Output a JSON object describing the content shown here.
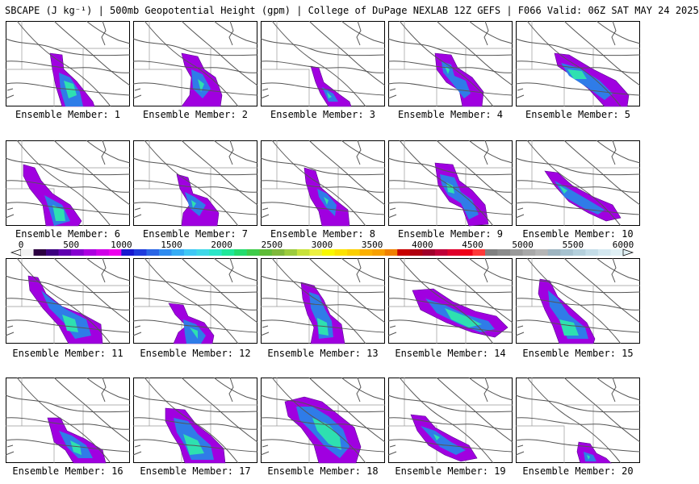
{
  "header": {
    "title": "SBCAPE (J kg⁻¹) | 500mb Geopotential Height (gpm) | College of DuPage NEXLAB 12Z GEFS | F066 Valid: 06Z SAT MAY 24 2025"
  },
  "colorbar": {
    "tick_labels": [
      "0",
      "500",
      "1000",
      "1500",
      "2000",
      "2500",
      "3000",
      "3500",
      "4000",
      "4500",
      "5000",
      "5500",
      "6000"
    ],
    "colors": [
      "#f2f2f2",
      "#2b0040",
      "#3c0080",
      "#6000b0",
      "#8600d0",
      "#ad00e0",
      "#d000e8",
      "#ee00ee",
      "#1818d0",
      "#1f3cdd",
      "#2a66e6",
      "#2f8cf0",
      "#35acf5",
      "#3fc8f5",
      "#40d8e8",
      "#2ce6c8",
      "#20e89a",
      "#24dc6e",
      "#40cc4a",
      "#5fbc38",
      "#7fb83a",
      "#9ccc3c",
      "#c8e23a",
      "#ecf040",
      "#f8f800",
      "#fce200",
      "#fccf00",
      "#fcb000",
      "#f8a000",
      "#f08000",
      "#c80000",
      "#b00010",
      "#a0002a",
      "#c00038",
      "#e0002c",
      "#f00018",
      "#ff3838",
      "#808080",
      "#8c8c8c",
      "#9a9a9a",
      "#a8a8a8",
      "#b5b5b5",
      "#9db4c0",
      "#a6c2d0",
      "#b4d0dc",
      "#c4dde8",
      "#d4e8f0",
      "#e0f0f5"
    ]
  },
  "panels": [
    {
      "label": "Ensemble Member: 1",
      "col": 0,
      "row": 0
    },
    {
      "label": "Ensemble Member: 2",
      "col": 1,
      "row": 0
    },
    {
      "label": "Ensemble Member: 3",
      "col": 2,
      "row": 0
    },
    {
      "label": "Ensemble Member: 4",
      "col": 3,
      "row": 0
    },
    {
      "label": "Ensemble Member: 5",
      "col": 4,
      "row": 0
    },
    {
      "label": "Ensemble Member: 6",
      "col": 0,
      "row": 1
    },
    {
      "label": "Ensemble Member: 7",
      "col": 1,
      "row": 1
    },
    {
      "label": "Ensemble Member: 8",
      "col": 2,
      "row": 1
    },
    {
      "label": "Ensemble Member: 9",
      "col": 3,
      "row": 1
    },
    {
      "label": "Ensemble Member: 10",
      "col": 4,
      "row": 1
    },
    {
      "label": "Ensemble Member: 11",
      "col": 0,
      "row": 2
    },
    {
      "label": "Ensemble Member: 12",
      "col": 1,
      "row": 2
    },
    {
      "label": "Ensemble Member: 13",
      "col": 2,
      "row": 2
    },
    {
      "label": "Ensemble Member: 14",
      "col": 3,
      "row": 2
    },
    {
      "label": "Ensemble Member: 15",
      "col": 4,
      "row": 2
    },
    {
      "label": "Ensemble Member: 16",
      "col": 0,
      "row": 3
    },
    {
      "label": "Ensemble Member: 17",
      "col": 1,
      "row": 3
    },
    {
      "label": "Ensemble Member: 18",
      "col": 2,
      "row": 3
    },
    {
      "label": "Ensemble Member: 19",
      "col": 3,
      "row": 3
    },
    {
      "label": "Ensemble Member: 20",
      "col": 4,
      "row": 3
    }
  ]
}
